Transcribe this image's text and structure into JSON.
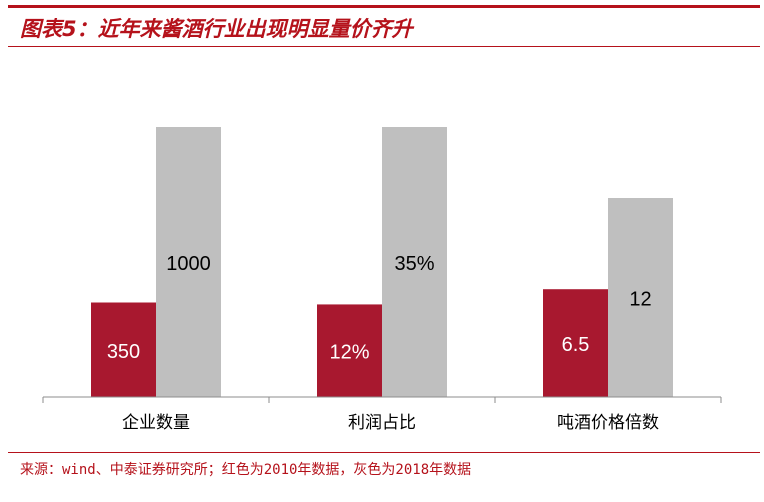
{
  "title": "图表5：近年来酱酒行业出现明显量价齐升",
  "source": "来源：wind、中泰证券研究所；红色为2010年数据，灰色为2018年数据",
  "colors": {
    "accent": "#b5121b",
    "bar_2010": "#a8182f",
    "bar_2018": "#bfbfbf",
    "axis": "#8c8c8c"
  },
  "chart_data": {
    "type": "bar",
    "categories": [
      "企业数量",
      "利润占比",
      "吨酒价格倍数"
    ],
    "series": [
      {
        "values": [
          350,
          12,
          6.5
        ],
        "labels": [
          "350",
          "12%",
          "6.5"
        ]
      },
      {
        "values": [
          1000,
          35,
          12
        ],
        "labels": [
          "1000",
          "35%",
          "12"
        ]
      }
    ],
    "note": "Each category is independently scaled; values shown are data labels.",
    "title": "",
    "xlabel": "",
    "ylabel": ""
  }
}
